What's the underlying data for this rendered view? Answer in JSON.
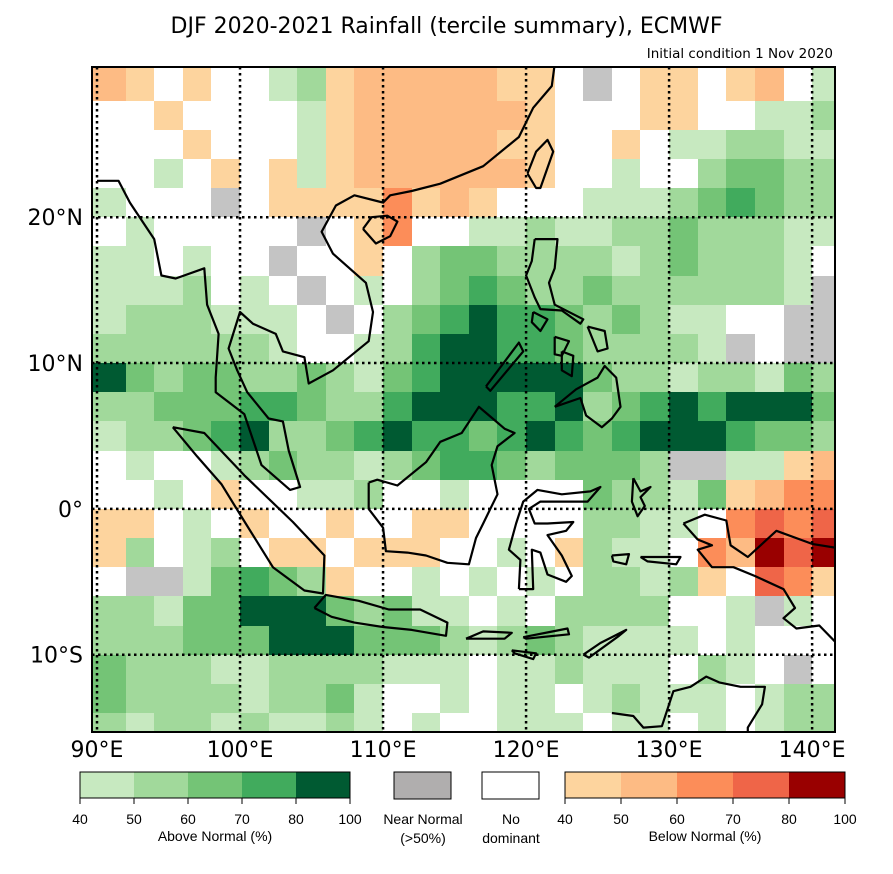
{
  "title": "DJF 2020-2021 Rainfall (tercile summary), ECMWF",
  "subtitle": "Initial condition 1 Nov 2020",
  "axes": {
    "lat_labels": [
      {
        "lat": 20,
        "text": "20°N"
      },
      {
        "lat": 10,
        "text": "10°N"
      },
      {
        "lat": 0,
        "text": "0°"
      },
      {
        "lat": -10,
        "text": "10°S"
      }
    ],
    "lon_labels": [
      {
        "lon": 90,
        "text": "90°E"
      },
      {
        "lon": 100,
        "text": "100°E"
      },
      {
        "lon": 110,
        "text": "110°E"
      },
      {
        "lon": 120,
        "text": "120°E"
      },
      {
        "lon": 130,
        "text": "130°E"
      },
      {
        "lon": 140,
        "text": "140°E"
      }
    ],
    "extent": {
      "lon": [
        89.65,
        141.6
      ],
      "lat": [
        -15.3,
        30.3
      ]
    }
  },
  "legend": {
    "above": {
      "label": "Above Normal (%)",
      "ticks": [
        "40",
        "50",
        "60",
        "70",
        "80",
        "100"
      ],
      "colors": [
        "#c7e9c0",
        "#a1d99b",
        "#74c476",
        "#41ab5d",
        "#005a32"
      ]
    },
    "near": {
      "line1": "Near Normal",
      "line2": "(>50%)",
      "color": "#b0aeae"
    },
    "none": {
      "line1": "No",
      "line2": "dominant",
      "color": "#ffffff"
    },
    "below": {
      "label": "Below Normal (%)",
      "ticks": [
        "40",
        "50",
        "60",
        "70",
        "80",
        "100"
      ],
      "colors": [
        "#fdd49e",
        "#fdbb84",
        "#fc8d59",
        "#ef6548",
        "#990000"
      ]
    }
  },
  "grid": {
    "cell_deg": 2,
    "lon_start": 90,
    "lat_top": 30,
    "codes": {
      ".": "#ffffff",
      "g": "#c4c4c4",
      "a": "#c7e9c0",
      "b": "#a1d99b",
      "c": "#74c476",
      "d": "#41ab5d",
      "e": "#005a32",
      "o": "#fdd49e",
      "p": "#fdbb84",
      "q": "#fc8d59",
      "r": "#ef6548",
      "s": "#990000"
    },
    "rows": [
      "po.o..abopppppoo.g.oo.op.a",
      "..o....aoppppppo...oo..aab",
      "...o...aopppppoo..o.aabbaa",
      "..a.o.oaoppppppo..a..bccbb",
      "a...g.ooooqopo...aaabcdcbb",
      ".a.....g.oq..aabaabbcbbbaa",
      "aa.a..g..o.bccbbbbabcbbba.",
      "aaab.a.g.a.bcdcbbcbbbbbbag",
      "abbbaaa.g.bcdeddcbcbaa..gg",
      "bbbbbba..abdeeddcbbbbag.gg",
      "ecbccbbcbacdeeeeecbbabbacb",
      "bbcccddcbbdeeeddebcdedeeec",
      "abbcdebbcdeddcdedcdeeedccb",
      ".a..abcbbabcddcbcccbggaaop",
      "..a.o..aab..a....cbbacopqq",
      "oo.a.o..o..oo....bbaa.qrqr",
      "ob.ab.oo.ooo..a.obaa.qpsrs",
      ".ggacdcbo..a.a.a.bbabo.rqo",
      "bbacceeecbcaa.a.bbbb..aga.",
      "bbbccceeecccbabcbaaaa.a...",
      "cbbbaabbbbaaa.aabaaa.ba.g.",
      "cbbbbabbca..a.aa.abaaa.abb",
      "babbabaaba.a..aaa.aa.a.abb"
    ]
  }
}
